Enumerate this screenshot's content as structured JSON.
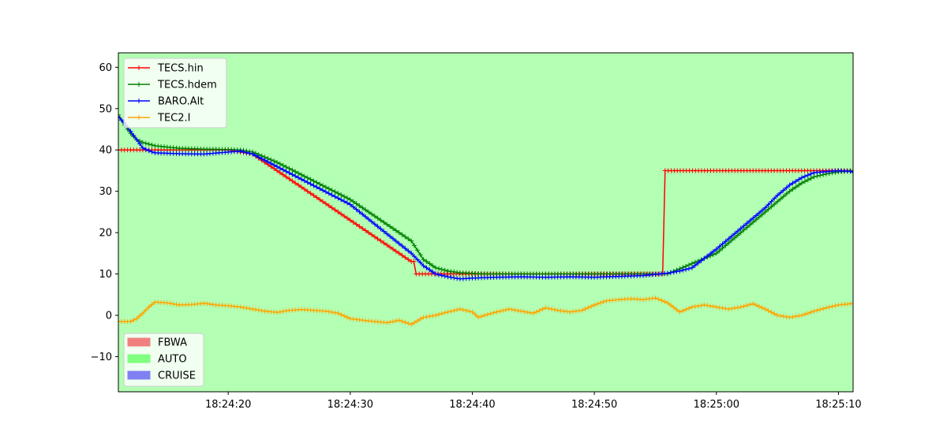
{
  "chart_data": {
    "type": "line",
    "title": "",
    "xlabel": "",
    "ylabel": "",
    "background_color": "#b3ffb3",
    "x_ticks": [
      "18:24:20",
      "18:24:30",
      "18:24:40",
      "18:24:50",
      "18:25:00",
      "18:25:10"
    ],
    "x_tick_seconds": [
      20,
      30,
      40,
      50,
      60,
      70
    ],
    "xlim_seconds": [
      11,
      71.2
    ],
    "ylim": [
      -18.5,
      63.5
    ],
    "y_ticks": [
      -10,
      0,
      10,
      20,
      30,
      40,
      50,
      60
    ],
    "grid": false,
    "line_legend_position": "upper left",
    "mode_legend_position": "lower left",
    "series": [
      {
        "name": "TECS.hin",
        "color": "#ff0000",
        "points": [
          [
            11,
            40
          ],
          [
            20,
            40
          ],
          [
            22,
            39
          ],
          [
            35,
            13
          ],
          [
            35.2,
            13
          ],
          [
            35.4,
            10
          ],
          [
            45,
            10
          ],
          [
            55.6,
            10
          ],
          [
            55.8,
            35
          ],
          [
            71.2,
            35
          ]
        ]
      },
      {
        "name": "TECS.hdem",
        "color": "#008000",
        "points": [
          [
            11,
            48.5
          ],
          [
            11.5,
            46
          ],
          [
            12,
            44
          ],
          [
            12.5,
            42.5
          ],
          [
            13,
            41.8
          ],
          [
            14,
            41
          ],
          [
            15,
            40.7
          ],
          [
            16,
            40.4
          ],
          [
            18,
            40.2
          ],
          [
            20,
            40.1
          ],
          [
            21,
            40
          ],
          [
            22,
            39.5
          ],
          [
            24,
            37
          ],
          [
            30,
            28
          ],
          [
            35,
            18
          ],
          [
            36,
            13.5
          ],
          [
            37,
            11.5
          ],
          [
            38,
            10.7
          ],
          [
            39,
            10.3
          ],
          [
            41,
            10
          ],
          [
            56,
            10
          ],
          [
            60,
            15
          ],
          [
            64,
            25
          ],
          [
            66,
            30
          ],
          [
            67,
            32
          ],
          [
            68,
            33.5
          ],
          [
            69,
            34.2
          ],
          [
            70,
            34.7
          ],
          [
            71.2,
            35
          ]
        ]
      },
      {
        "name": "BARO.Alt",
        "color": "#0000ff",
        "points": [
          [
            11,
            48
          ],
          [
            11.5,
            46.5
          ],
          [
            12,
            44.5
          ],
          [
            12.5,
            42.5
          ],
          [
            13,
            40.5
          ],
          [
            13.5,
            39.8
          ],
          [
            14,
            39.3
          ],
          [
            16,
            39.1
          ],
          [
            18,
            39
          ],
          [
            20,
            39.5
          ],
          [
            21,
            39.7
          ],
          [
            22,
            39
          ],
          [
            23,
            37.5
          ],
          [
            30,
            26.8
          ],
          [
            35,
            15
          ],
          [
            36,
            12
          ],
          [
            37,
            10
          ],
          [
            38,
            9.3
          ],
          [
            39,
            8.8
          ],
          [
            40,
            9
          ],
          [
            42,
            9.2
          ],
          [
            44,
            9.3
          ],
          [
            46,
            9.2
          ],
          [
            48,
            9.3
          ],
          [
            50,
            9.2
          ],
          [
            52,
            9.4
          ],
          [
            54,
            9.6
          ],
          [
            56,
            10.2
          ],
          [
            57,
            10.7
          ],
          [
            58,
            11.5
          ],
          [
            60,
            16
          ],
          [
            62,
            21
          ],
          [
            64,
            26
          ],
          [
            65,
            29
          ],
          [
            66,
            31.5
          ],
          [
            67,
            33.3
          ],
          [
            68,
            34.5
          ],
          [
            70,
            35
          ],
          [
            71,
            34.8
          ],
          [
            71.2,
            34.5
          ]
        ]
      },
      {
        "name": "TEC2.I",
        "color": "#ffa500",
        "points": [
          [
            11,
            -1.5
          ],
          [
            12,
            -1.5
          ],
          [
            12.5,
            -0.8
          ],
          [
            13,
            0.5
          ],
          [
            13.5,
            2
          ],
          [
            14,
            3.2
          ],
          [
            15,
            3
          ],
          [
            16,
            2.5
          ],
          [
            17,
            2.6
          ],
          [
            18,
            2.9
          ],
          [
            19,
            2.5
          ],
          [
            20,
            2.3
          ],
          [
            21,
            2
          ],
          [
            22,
            1.5
          ],
          [
            23,
            1
          ],
          [
            24,
            0.7
          ],
          [
            25,
            1.2
          ],
          [
            26,
            1.4
          ],
          [
            27,
            1.2
          ],
          [
            28,
            1
          ],
          [
            29,
            0.5
          ],
          [
            30,
            -0.8
          ],
          [
            31,
            -1.2
          ],
          [
            32,
            -1.5
          ],
          [
            33,
            -1.8
          ],
          [
            34,
            -1.2
          ],
          [
            35,
            -2.2
          ],
          [
            36,
            -0.5
          ],
          [
            37,
            0
          ],
          [
            38,
            0.8
          ],
          [
            39,
            1.5
          ],
          [
            40,
            0.8
          ],
          [
            40.5,
            -0.5
          ],
          [
            41,
            0
          ],
          [
            42,
            0.8
          ],
          [
            43,
            1.5
          ],
          [
            44,
            1
          ],
          [
            45,
            0.5
          ],
          [
            46,
            1.8
          ],
          [
            47,
            1.2
          ],
          [
            48,
            0.8
          ],
          [
            49,
            1.2
          ],
          [
            50,
            2.5
          ],
          [
            51,
            3.5
          ],
          [
            52,
            3.8
          ],
          [
            53,
            4
          ],
          [
            54,
            3.8
          ],
          [
            55,
            4.2
          ],
          [
            56,
            3
          ],
          [
            57,
            0.8
          ],
          [
            58,
            2
          ],
          [
            59,
            2.5
          ],
          [
            60,
            2
          ],
          [
            61,
            1.5
          ],
          [
            62,
            2
          ],
          [
            63,
            2.8
          ],
          [
            64,
            1.5
          ],
          [
            65,
            0
          ],
          [
            66,
            -0.5
          ],
          [
            67,
            0
          ],
          [
            68,
            1
          ],
          [
            69,
            1.8
          ],
          [
            70,
            2.5
          ],
          [
            71,
            2.8
          ],
          [
            71.2,
            2.8
          ]
        ]
      }
    ],
    "modes": [
      {
        "name": "FBWA",
        "color": "#f08080"
      },
      {
        "name": "AUTO",
        "color": "#80ff80"
      },
      {
        "name": "CRUISE",
        "color": "#8080f0"
      }
    ]
  }
}
